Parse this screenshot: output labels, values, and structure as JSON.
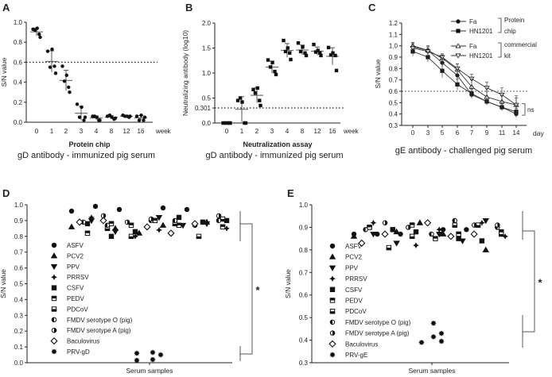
{
  "chart_data": [
    {
      "panel": "A",
      "type": "scatter",
      "ylabel": "S/N value",
      "xlabel": "Protein chip",
      "caption": "gD antibody - immunized pig serum",
      "xunit": "week",
      "categories": [
        "0",
        "1",
        "2",
        "3",
        "4",
        "8",
        "12",
        "16"
      ],
      "yticks": [
        "0.0",
        "0.2",
        "0.4",
        "0.6",
        "0.8",
        "1.0"
      ],
      "ylim": [
        0,
        1.0
      ],
      "cutoff": 0.6,
      "values": [
        [
          0.93,
          0.94,
          0.92,
          0.88,
          0.85
        ],
        [
          0.71,
          0.73,
          0.55,
          0.56,
          0.49
        ],
        [
          0.56,
          0.47,
          0.41,
          0.35,
          0.3
        ],
        [
          0.18,
          0.15,
          0.05,
          0.02,
          0.05
        ],
        [
          0.06,
          0.05,
          0.06,
          0.02,
          0.02
        ],
        [
          0.06,
          0.05,
          0.07,
          0.03,
          0.04
        ],
        [
          0.07,
          0.06,
          0.06,
          0.05,
          0.06
        ],
        [
          0.06,
          0.07,
          0.02,
          0.02,
          0.05
        ]
      ]
    },
    {
      "panel": "B",
      "type": "scatter",
      "ylabel": "Neutralizing antibody (log10)",
      "xlabel": "Neutralization assay",
      "caption": "gD antibody - immunized pig serum",
      "xunit": "week",
      "categories": [
        "0",
        "1",
        "2",
        "3",
        "4",
        "8",
        "12",
        "16"
      ],
      "yticks": [
        "0.0",
        "0.5",
        "1.0",
        "1.5",
        "2.0"
      ],
      "extra_tick": "0.301",
      "ylim": [
        0,
        2.0
      ],
      "cutoff": 0.301,
      "values": [
        [
          0,
          0,
          0,
          0,
          0
        ],
        [
          0.45,
          0.42,
          0.5,
          0,
          0
        ],
        [
          0.67,
          0.7,
          0.6,
          0.45,
          0.35
        ],
        [
          1.26,
          1.21,
          1.12,
          1.03,
          0.97
        ],
        [
          1.65,
          1.5,
          1.43,
          1.4,
          1.27
        ],
        [
          1.6,
          1.52,
          1.43,
          1.4,
          1.35
        ],
        [
          1.57,
          1.45,
          1.42,
          1.4,
          1.35
        ],
        [
          1.51,
          1.4,
          1.36,
          1.35,
          1.05
        ]
      ]
    },
    {
      "panel": "C",
      "type": "line",
      "ylabel": "S/N value",
      "caption": "gE antibody - challenged pig serum",
      "xunit": "day",
      "categories": [
        "0",
        "3",
        "5",
        "6",
        "7",
        "9",
        "11",
        "14"
      ],
      "yticks": [
        "0.3",
        "0.4",
        "0.5",
        "0.6",
        "0.7",
        "0.8",
        "0.9",
        "1.0",
        "1.1",
        "1.2"
      ],
      "ylim": [
        0.3,
        1.2
      ],
      "cutoff": 0.6,
      "legend_groups": [
        {
          "label_line1": "Protein",
          "label_line2": "chip"
        },
        {
          "label_line1": "commercial",
          "label_line2": "kit"
        }
      ],
      "annotation": "ns",
      "series": [
        {
          "name": "Fa",
          "group": 0,
          "marker": "circle",
          "values": [
            0.99,
            0.96,
            0.85,
            0.74,
            0.57,
            0.51,
            0.46,
            0.4
          ],
          "err": [
            0.03,
            0.03,
            0.04,
            0.05,
            0.03,
            0.03,
            0.03,
            0.03
          ]
        },
        {
          "name": "HN1201",
          "group": 0,
          "marker": "square",
          "values": [
            0.95,
            0.9,
            0.78,
            0.66,
            0.58,
            0.51,
            0.46,
            0.42
          ],
          "err": [
            0.04,
            0.04,
            0.06,
            0.05,
            0.04,
            0.03,
            0.03,
            0.03
          ]
        },
        {
          "name": "Fa",
          "group": 1,
          "marker": "triangle-up-open",
          "values": [
            1.0,
            0.96,
            0.89,
            0.79,
            0.64,
            0.55,
            0.51,
            0.48
          ],
          "err": [
            0.03,
            0.04,
            0.03,
            0.05,
            0.06,
            0.05,
            0.05,
            0.06
          ]
        },
        {
          "name": "HN1201",
          "group": 1,
          "marker": "triangle-down-open",
          "values": [
            0.98,
            0.95,
            0.9,
            0.8,
            0.71,
            0.63,
            0.57,
            0.48
          ],
          "err": [
            0.04,
            0.04,
            0.03,
            0.04,
            0.04,
            0.05,
            0.06,
            0.08
          ]
        }
      ]
    },
    {
      "panel": "D",
      "type": "scatter",
      "ylabel": "S/N value",
      "xlabel": "Serum samples",
      "yticks": [
        "0.0",
        "0.1",
        "0.2",
        "0.3",
        "0.4",
        "0.5",
        "0.6",
        "0.7",
        "0.8",
        "0.9",
        "1.0"
      ],
      "ylim": [
        0,
        1.0
      ],
      "annotation": "*",
      "series": [
        {
          "name": "ASFV",
          "marker": "circle",
          "values": [
            0.96,
            0.98,
            0.99,
            0.97,
            0.97
          ]
        },
        {
          "name": "PCV2",
          "marker": "triangle-up",
          "values": [
            0.85,
            0.89,
            0.82,
            0.86,
            0.87
          ]
        },
        {
          "name": "PPV",
          "marker": "triangle-down",
          "values": [
            0.92,
            0.9,
            0.87,
            0.83,
            0.88
          ]
        },
        {
          "name": "PRRSV",
          "marker": "star4",
          "values": [
            0.89,
            0.8,
            0.85,
            0.84,
            0.92
          ]
        },
        {
          "name": "CSFV",
          "marker": "square",
          "values": [
            0.88,
            0.92,
            0.8,
            0.89,
            0.83,
            0.9
          ]
        },
        {
          "name": "PEDV",
          "marker": "square-top",
          "values": [
            0.87,
            0.86,
            0.9,
            0.82,
            0.87,
            0.88
          ]
        },
        {
          "name": "PDCoV",
          "marker": "square-bottom",
          "values": [
            0.88,
            0.85,
            0.8,
            0.8,
            0.91
          ]
        },
        {
          "name": "FMDV serotype O (pig)",
          "marker": "circle-left",
          "values": [
            0.9,
            0.9,
            0.89,
            0.9,
            0.87
          ]
        },
        {
          "name": "FMDV serotype A (pig)",
          "marker": "circle-right",
          "values": [
            0.93,
            0.87,
            0.89,
            0.93,
            0.91
          ]
        },
        {
          "name": "Baculovirus",
          "marker": "diamond-open",
          "values": [
            0.86,
            0.89,
            0.82,
            0.9,
            0.88
          ]
        },
        {
          "name": "PRV-gD",
          "marker": "star8",
          "values": [
            0.06,
            0.015,
            0.065,
            0.02,
            0.05
          ]
        }
      ]
    },
    {
      "panel": "E",
      "type": "scatter",
      "ylabel": "S/N value",
      "xlabel": "Serum samples",
      "yticks": [
        "0.3",
        "0.4",
        "0.5",
        "0.6",
        "0.7",
        "0.8",
        "0.9",
        "1.0"
      ],
      "ylim": [
        0.3,
        1.0
      ],
      "annotation": "*",
      "series": [
        {
          "name": "ASFV",
          "marker": "circle",
          "values": [
            0.87,
            0.89,
            0.87,
            0.89,
            0.87
          ]
        },
        {
          "name": "PCV2",
          "marker": "triangle-up",
          "values": [
            0.88,
            0.8,
            0.92,
            0.86,
            0.87
          ]
        },
        {
          "name": "PPV",
          "marker": "triangle-down",
          "values": [
            0.87,
            0.87,
            0.84,
            0.83,
            0.93
          ]
        },
        {
          "name": "PRRSV",
          "marker": "star4",
          "values": [
            0.92,
            0.82,
            0.86,
            0.89,
            0.92
          ]
        },
        {
          "name": "CSFV",
          "marker": "square",
          "values": [
            0.9,
            0.85,
            0.89,
            0.84,
            0.88
          ]
        },
        {
          "name": "PEDV",
          "marker": "square-top",
          "values": [
            0.91,
            0.88,
            0.85,
            0.9,
            0.87
          ]
        },
        {
          "name": "PDCoV",
          "marker": "square-bottom",
          "values": [
            0.91,
            0.81,
            0.91,
            0.86,
            0.87
          ]
        },
        {
          "name": "FMDV serotype O (pig)",
          "marker": "circle-left",
          "values": [
            0.9,
            0.87,
            0.89,
            0.93
          ]
        },
        {
          "name": "FMDV serotype A (pig)",
          "marker": "circle-right",
          "values": [
            0.92,
            0.91,
            0.9,
            0.91
          ]
        },
        {
          "name": "Baculovirus",
          "marker": "diamond-open",
          "values": [
            0.92,
            0.83,
            0.86,
            0.87,
            0.87
          ]
        },
        {
          "name": "PRV-gE",
          "marker": "star8",
          "values": [
            0.39,
            0.475,
            0.415,
            0.43,
            0.395
          ]
        }
      ]
    }
  ]
}
